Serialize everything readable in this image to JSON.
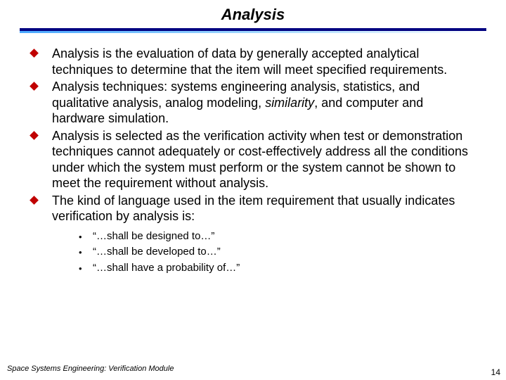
{
  "title": "Analysis",
  "colors": {
    "rule_top": "#000080",
    "rule_gradient_from": "#4aa8ff",
    "rule_gradient_mid": "#a8dcff",
    "rule_gradient_to": "#ffffff",
    "diamond_bullet": "#c00000",
    "text": "#000000",
    "background": "#ffffff"
  },
  "typography": {
    "title_fontsize": 22,
    "title_weight": "bold",
    "title_style": "italic",
    "body_fontsize": 18,
    "sub_fontsize": 15,
    "footer_fontsize": 11,
    "pagenum_fontsize": 12,
    "font_family": "Arial"
  },
  "bullets": [
    {
      "text": "Analysis is the evaluation of data by generally accepted analytical techniques to determine that the item will meet specified requirements."
    },
    {
      "prefix": "Analysis techniques: systems engineering analysis, statistics, and qualitative analysis, analog modeling, ",
      "italic": "similarity",
      "suffix": ", and computer and hardware simulation."
    },
    {
      "text": "Analysis is selected as the verification activity when test or demonstration techniques cannot adequately or cost-effectively address all the conditions under which the system must perform or the system cannot be shown to meet the requirement without analysis."
    },
    {
      "text": "The kind of language used in the item requirement that usually indicates verification by analysis is:"
    }
  ],
  "sub_bullets": [
    "“…shall be designed to…”",
    "“…shall be developed to…”",
    "“…shall have a probability of…”"
  ],
  "footer": "Space Systems Engineering: Verification Module",
  "page_number": "14"
}
